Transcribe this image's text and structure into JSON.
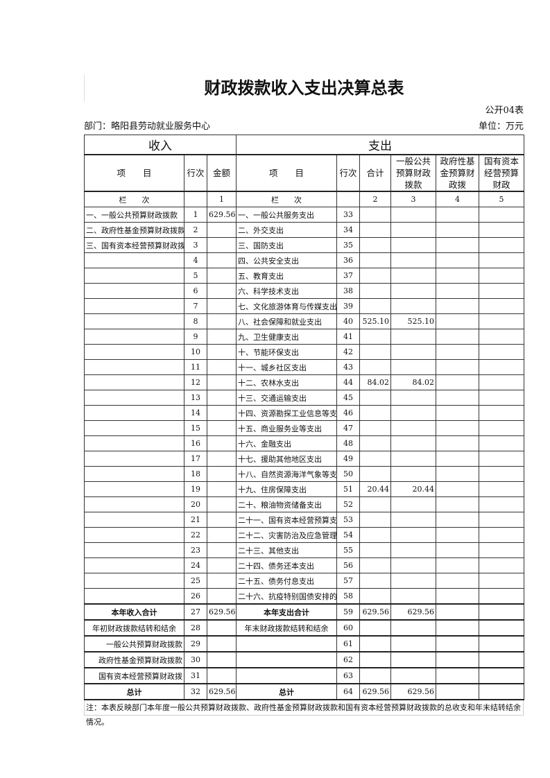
{
  "title": "财政拨款收入支出决算总表",
  "form_no": "公开04表",
  "department": "部门：略阳县劳动就业服务中心",
  "unit": "单位：万元",
  "headers": {
    "income": "收入",
    "expense": "支出",
    "item": "项　　目",
    "line": "行次",
    "amount": "金额",
    "total": "合计",
    "general": "一般公共预算财政拨款",
    "fund": "政府性基金预算财政拨",
    "state": "国有资本经营预算财政",
    "col_label": "栏　　次",
    "c1": "1",
    "c2": "2",
    "c3": "3",
    "c4": "4",
    "c5": "5"
  },
  "rows": [
    {
      "in": "一、一般公共预算财政拨款",
      "l": "1",
      "amt": "629.56",
      "out": "一、一般公共服务支出",
      "l2": "33",
      "t": "",
      "g": ""
    },
    {
      "in": "二、政府性基金预算财政拨款",
      "l": "2",
      "amt": "",
      "out": "二、外交支出",
      "l2": "34",
      "t": "",
      "g": ""
    },
    {
      "in": "三、国有资本经营预算财政拨款",
      "l": "3",
      "amt": "",
      "out": "三、国防支出",
      "l2": "35",
      "t": "",
      "g": ""
    },
    {
      "in": "",
      "l": "4",
      "amt": "",
      "out": "四、公共安全支出",
      "l2": "36",
      "t": "",
      "g": ""
    },
    {
      "in": "",
      "l": "5",
      "amt": "",
      "out": "五、教育支出",
      "l2": "37",
      "t": "",
      "g": ""
    },
    {
      "in": "",
      "l": "6",
      "amt": "",
      "out": "六、科学技术支出",
      "l2": "38",
      "t": "",
      "g": ""
    },
    {
      "in": "",
      "l": "7",
      "amt": "",
      "out": "七、文化旅游体育与传媒支出",
      "l2": "39",
      "t": "",
      "g": ""
    },
    {
      "in": "",
      "l": "8",
      "amt": "",
      "out": "八、社会保障和就业支出",
      "l2": "40",
      "t": "525.10",
      "g": "525.10"
    },
    {
      "in": "",
      "l": "9",
      "amt": "",
      "out": "九、卫生健康支出",
      "l2": "41",
      "t": "",
      "g": ""
    },
    {
      "in": "",
      "l": "10",
      "amt": "",
      "out": "十、节能环保支出",
      "l2": "42",
      "t": "",
      "g": ""
    },
    {
      "in": "",
      "l": "11",
      "amt": "",
      "out": "十一、城乡社区支出",
      "l2": "43",
      "t": "",
      "g": ""
    },
    {
      "in": "",
      "l": "12",
      "amt": "",
      "out": "十二、农林水支出",
      "l2": "44",
      "t": "84.02",
      "g": "84.02"
    },
    {
      "in": "",
      "l": "13",
      "amt": "",
      "out": "十三、交通运输支出",
      "l2": "45",
      "t": "",
      "g": ""
    },
    {
      "in": "",
      "l": "14",
      "amt": "",
      "out": "十四、资源勘探工业信息等支出",
      "l2": "46",
      "t": "",
      "g": ""
    },
    {
      "in": "",
      "l": "15",
      "amt": "",
      "out": "十五、商业服务业等支出",
      "l2": "47",
      "t": "",
      "g": ""
    },
    {
      "in": "",
      "l": "16",
      "amt": "",
      "out": "十六、金融支出",
      "l2": "48",
      "t": "",
      "g": ""
    },
    {
      "in": "",
      "l": "17",
      "amt": "",
      "out": "十七、援助其他地区支出",
      "l2": "49",
      "t": "",
      "g": ""
    },
    {
      "in": "",
      "l": "18",
      "amt": "",
      "out": "十八、自然资源海洋气象等支出",
      "l2": "50",
      "t": "",
      "g": ""
    },
    {
      "in": "",
      "l": "19",
      "amt": "",
      "out": "十九、住房保障支出",
      "l2": "51",
      "t": "20.44",
      "g": "20.44"
    },
    {
      "in": "",
      "l": "20",
      "amt": "",
      "out": "二十、粮油物资储备支出",
      "l2": "52",
      "t": "",
      "g": ""
    },
    {
      "in": "",
      "l": "21",
      "amt": "",
      "out": "二十一、国有资本经营预算支出",
      "l2": "53",
      "t": "",
      "g": ""
    },
    {
      "in": "",
      "l": "22",
      "amt": "",
      "out": "二十二、灾害防治及应急管理支出",
      "l2": "54",
      "t": "",
      "g": ""
    },
    {
      "in": "",
      "l": "23",
      "amt": "",
      "out": "二十三、其他支出",
      "l2": "55",
      "t": "",
      "g": ""
    },
    {
      "in": "",
      "l": "24",
      "amt": "",
      "out": "二十四、债务还本支出",
      "l2": "56",
      "t": "",
      "g": ""
    },
    {
      "in": "",
      "l": "25",
      "amt": "",
      "out": "二十五、债务付息支出",
      "l2": "57",
      "t": "",
      "g": ""
    },
    {
      "in": "",
      "l": "26",
      "amt": "",
      "out": "二十六、抗疫特别国债安排的支出",
      "l2": "58",
      "t": "",
      "g": ""
    }
  ],
  "summary": [
    {
      "in": "本年收入合计",
      "l": "27",
      "amt": "629.56",
      "out": "本年支出合计",
      "l2": "59",
      "t": "629.56",
      "g": "629.56",
      "bold": true
    },
    {
      "in": "年初财政拨款结转和结余",
      "l": "28",
      "amt": "",
      "out": "年末财政拨款结转和结余",
      "l2": "60",
      "t": "",
      "g": ""
    },
    {
      "in": "一般公共预算财政拨款",
      "l": "29",
      "amt": "",
      "out": "",
      "l2": "61",
      "t": "",
      "g": ""
    },
    {
      "in": "政府性基金预算财政拨款",
      "l": "30",
      "amt": "",
      "out": "",
      "l2": "62",
      "t": "",
      "g": ""
    },
    {
      "in": "国有资本经营预算财政拨",
      "l": "31",
      "amt": "",
      "out": "",
      "l2": "63",
      "t": "",
      "g": ""
    },
    {
      "in": "总计",
      "l": "32",
      "amt": "629.56",
      "out": "总计",
      "l2": "64",
      "t": "629.56",
      "g": "629.56",
      "bold": true
    }
  ],
  "note": "注：本表反映部门本年度一般公共预算财政拨款、政府性基金预算财政拨款和国有资本经营预算财政拨款的总收支和年末结转结余情况。"
}
